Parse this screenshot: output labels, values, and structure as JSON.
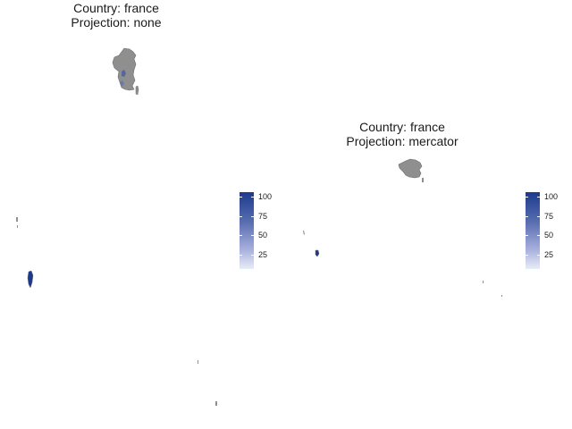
{
  "panels": [
    {
      "country": "france",
      "projection": "none",
      "title_line1": "Country: france",
      "title_line2": "Projection: none",
      "legend": {
        "labels": [
          "100",
          "75",
          "50",
          "25"
        ],
        "values": [
          100,
          75,
          50,
          25
        ],
        "min": 0,
        "max": 100
      }
    },
    {
      "country": "france",
      "projection": "mercator",
      "title_line1": "Country: france",
      "title_line2": "Projection: mercator",
      "legend": {
        "labels": [
          "100",
          "75",
          "50",
          "25"
        ],
        "values": [
          100,
          75,
          50,
          25
        ],
        "min": 0,
        "max": 100
      }
    }
  ],
  "colors": {
    "land": "#8f8f8f",
    "land_stroke": "#6e6e6e",
    "fill_high": "#1b3a8c",
    "fill_low": "#e9ecf8",
    "background": "#ffffff"
  }
}
